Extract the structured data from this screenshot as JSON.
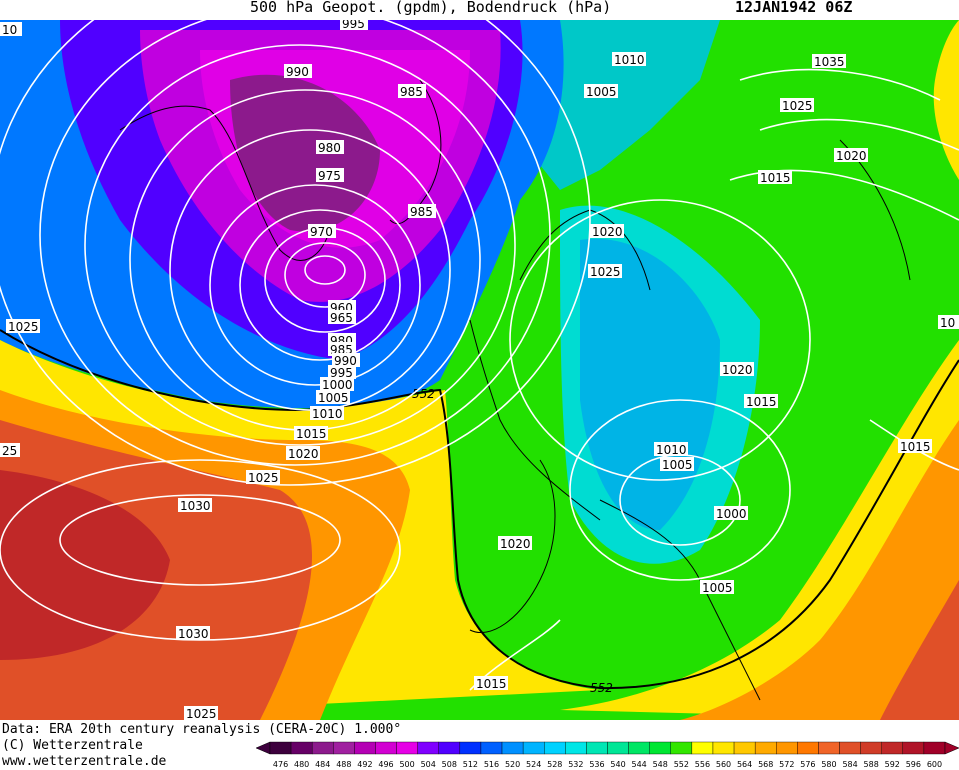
{
  "header": {
    "title": "500 hPa Geopot. (gpdm), Bodendruck (hPa)",
    "date": "12JAN1942 06Z"
  },
  "footer": {
    "data_source": "Data: ERA 20th century reanalysis (CERA-20C) 1.000°",
    "copyright": "(C) Wetterzentrale",
    "website": "www.wetterzentrale.de"
  },
  "legend": {
    "ticks": [
      "476",
      "480",
      "484",
      "488",
      "492",
      "496",
      "500",
      "504",
      "508",
      "512",
      "516",
      "520",
      "524",
      "528",
      "532",
      "536",
      "540",
      "544",
      "548",
      "552",
      "556",
      "560",
      "564",
      "568",
      "572",
      "576",
      "580",
      "584",
      "588",
      "592",
      "596",
      "600"
    ],
    "colors": [
      "#3d003d",
      "#660066",
      "#8c1a8c",
      "#a020a0",
      "#b400b4",
      "#d200d2",
      "#e600e6",
      "#8000ff",
      "#5000ff",
      "#0030ff",
      "#0060ff",
      "#0090ff",
      "#00b4ff",
      "#00d2ff",
      "#00e6e6",
      "#00e6b4",
      "#00e696",
      "#00e664",
      "#00e632",
      "#32e600",
      "#ffff00",
      "#ffe600",
      "#ffc800",
      "#ffaa00",
      "#ff9600",
      "#ff7800",
      "#f06428",
      "#e05028",
      "#d03c28",
      "#c02828",
      "#b01428",
      "#a00028"
    ]
  },
  "map": {
    "geopotential_contour_label": "552",
    "pressure_labels": [
      "10",
      "995",
      "990",
      "985",
      "980",
      "975",
      "985",
      "970",
      "960",
      "965",
      "980",
      "985",
      "990",
      "995",
      "1000",
      "1005",
      "1010",
      "1015",
      "1020",
      "1025",
      "1030",
      "1025",
      "1010",
      "1005",
      "1035",
      "1025",
      "1020",
      "1015",
      "1020",
      "1025",
      "1020",
      "1015",
      "1010",
      "1005",
      "1000",
      "1005",
      "1020",
      "1015",
      "1015",
      "10",
      "25",
      "1030",
      "1030",
      "1025"
    ]
  }
}
